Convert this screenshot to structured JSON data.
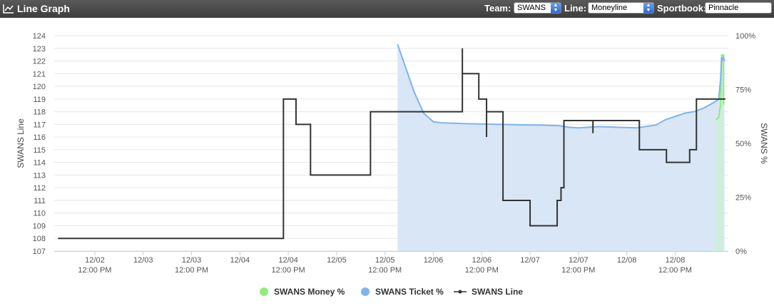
{
  "header": {
    "title": "Line Graph",
    "title_icon": "line-chart-icon",
    "team_label": "Team:",
    "team_value": "SWANS",
    "line_label": "Line:",
    "line_value": "Moneyline",
    "sportsbook_label": "Sportbook:",
    "sportsbook_value": "Pinnacle"
  },
  "colors": {
    "line": "#333333",
    "ticket": "#7cb5ec",
    "ticket_fill": "#d8e6f5",
    "money": "#90ed7d",
    "money_fill": "#cdeedd"
  },
  "chart_data": {
    "type": "line",
    "ylabel": "SWANS Line",
    "y2label": "SWANS %",
    "ylim": [
      107,
      124
    ],
    "y_ticks": [
      "107",
      "108",
      "109",
      "110",
      "111",
      "112",
      "113",
      "114",
      "115",
      "116",
      "117",
      "118",
      "119",
      "120",
      "121",
      "122",
      "123",
      "124"
    ],
    "y2lim": [
      0,
      100
    ],
    "y2_ticks": [
      "0%",
      "25%",
      "50%",
      "75%",
      "100%"
    ],
    "xlim": [
      1.58,
      8.55
    ],
    "x_ticks": [
      {
        "x": 2.0,
        "date": "12/02",
        "time": "12:00 PM"
      },
      {
        "x": 2.5,
        "date": "12/03",
        "time": ""
      },
      {
        "x": 3.0,
        "date": "12/03",
        "time": "12:00 PM"
      },
      {
        "x": 3.5,
        "date": "12/04",
        "time": ""
      },
      {
        "x": 4.0,
        "date": "12/04",
        "time": "12:00 PM"
      },
      {
        "x": 4.5,
        "date": "12/05",
        "time": ""
      },
      {
        "x": 5.0,
        "date": "12/05",
        "time": "12:00 PM"
      },
      {
        "x": 5.5,
        "date": "12/06",
        "time": ""
      },
      {
        "x": 6.0,
        "date": "12/06",
        "time": "12:00 PM"
      },
      {
        "x": 6.5,
        "date": "12/07",
        "time": ""
      },
      {
        "x": 7.0,
        "date": "12/07",
        "time": "12:00 PM"
      },
      {
        "x": 7.5,
        "date": "12/08",
        "time": ""
      },
      {
        "x": 8.0,
        "date": "12/08",
        "time": "12:00 PM"
      }
    ],
    "grid": true,
    "legend_position": "bottom-center",
    "series": [
      {
        "name": "SWANS Money %",
        "axis": "right",
        "points": [
          [
            8.42,
            0
          ],
          [
            8.42,
            61
          ],
          [
            8.45,
            62
          ],
          [
            8.47,
            68
          ],
          [
            8.48,
            91
          ],
          [
            8.5,
            91
          ],
          [
            8.5,
            68
          ]
        ]
      },
      {
        "name": "SWANS Ticket %",
        "axis": "right",
        "points": [
          [
            5.13,
            96
          ],
          [
            5.2,
            87
          ],
          [
            5.3,
            74
          ],
          [
            5.4,
            64
          ],
          [
            5.5,
            60
          ],
          [
            5.6,
            59.5
          ],
          [
            5.8,
            59.2
          ],
          [
            6.0,
            59
          ],
          [
            6.2,
            58.8
          ],
          [
            6.4,
            58.6
          ],
          [
            6.6,
            58.5
          ],
          [
            6.8,
            58.2
          ],
          [
            6.9,
            57.5
          ],
          [
            7.0,
            57.2
          ],
          [
            7.1,
            57.5
          ],
          [
            7.2,
            57.8
          ],
          [
            7.4,
            57.5
          ],
          [
            7.6,
            57.2
          ],
          [
            7.8,
            58.5
          ],
          [
            7.9,
            61
          ],
          [
            8.0,
            62.5
          ],
          [
            8.1,
            64
          ],
          [
            8.2,
            64.8
          ],
          [
            8.3,
            66.5
          ],
          [
            8.4,
            69
          ],
          [
            8.45,
            70.5
          ],
          [
            8.47,
            80
          ],
          [
            8.48,
            90
          ],
          [
            8.49,
            89
          ],
          [
            8.5,
            90
          ],
          [
            8.51,
            88
          ]
        ]
      },
      {
        "name": "SWANS Line",
        "axis": "left",
        "points": [
          [
            1.62,
            108
          ],
          [
            3.95,
            108
          ],
          [
            3.95,
            119
          ],
          [
            4.08,
            119
          ],
          [
            4.08,
            117
          ],
          [
            4.23,
            117
          ],
          [
            4.23,
            113
          ],
          [
            4.85,
            113
          ],
          [
            4.85,
            118
          ],
          [
            5.8,
            118
          ],
          [
            5.8,
            123
          ],
          [
            5.8,
            121
          ],
          [
            5.97,
            121
          ],
          [
            5.97,
            119
          ],
          [
            6.05,
            119
          ],
          [
            6.05,
            118
          ],
          [
            6.05,
            116
          ],
          [
            6.05,
            118
          ],
          [
            6.22,
            118
          ],
          [
            6.22,
            111
          ],
          [
            6.5,
            111
          ],
          [
            6.5,
            109
          ],
          [
            6.78,
            109
          ],
          [
            6.78,
            111
          ],
          [
            6.82,
            111
          ],
          [
            6.82,
            112
          ],
          [
            6.85,
            112
          ],
          [
            6.85,
            117.3
          ],
          [
            7.15,
            117.3
          ],
          [
            7.15,
            116.3
          ],
          [
            7.15,
            117.3
          ],
          [
            7.35,
            117.3
          ],
          [
            7.35,
            117.3
          ],
          [
            7.63,
            117.3
          ],
          [
            7.63,
            115
          ],
          [
            7.91,
            115
          ],
          [
            7.91,
            114
          ],
          [
            8.15,
            114
          ],
          [
            8.15,
            115
          ],
          [
            8.22,
            115
          ],
          [
            8.22,
            119
          ],
          [
            8.45,
            119
          ],
          [
            8.45,
            119
          ],
          [
            8.52,
            119
          ]
        ]
      }
    ]
  }
}
